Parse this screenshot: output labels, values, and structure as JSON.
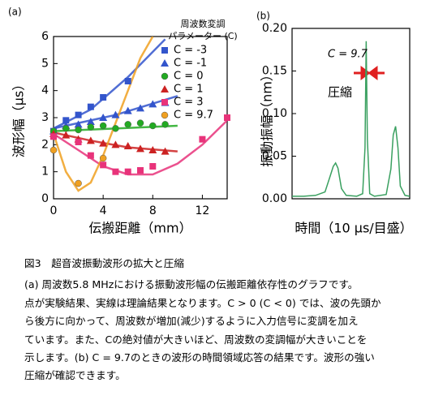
{
  "chart_data": [
    {
      "type": "scatter",
      "panel_label": "(a)",
      "xlabel": "伝搬距離（mm）",
      "ylabel": "波形幅（μs）",
      "xlim": [
        0,
        14
      ],
      "xticks": [
        0,
        4,
        8,
        12
      ],
      "ylim": [
        0,
        6
      ],
      "yticks": [
        0,
        1,
        2,
        3,
        4,
        5,
        6
      ],
      "legend_title": [
        "周波数変調",
        "パラメーター (C)"
      ],
      "series": [
        {
          "name": "C = -3",
          "color": "#3355cc",
          "marker": "square",
          "x": [
            0,
            1,
            2,
            3,
            4,
            6
          ],
          "values": [
            2.5,
            2.9,
            3.1,
            3.4,
            3.75,
            4.35
          ],
          "fit": {
            "x": [
              0,
              3,
              6,
              9
            ],
            "values": [
              2.6,
              3.3,
              4.5,
              5.9
            ]
          }
        },
        {
          "name": "C = -1",
          "color": "#3355cc",
          "marker": "triangle",
          "x": [
            0,
            1,
            2,
            3,
            4,
            5,
            6,
            7,
            8,
            9
          ],
          "values": [
            2.5,
            2.7,
            2.75,
            2.85,
            3.0,
            3.1,
            3.25,
            3.35,
            3.5,
            3.55
          ],
          "fit": {
            "x": [
              0,
              5,
              10
            ],
            "values": [
              2.6,
              3.1,
              3.8
            ]
          }
        },
        {
          "name": "C = 0",
          "color": "#22aa22",
          "marker": "circle",
          "x": [
            0,
            1,
            2,
            3,
            4,
            5,
            6,
            7,
            8,
            9
          ],
          "values": [
            2.5,
            2.6,
            2.55,
            2.65,
            2.7,
            2.6,
            2.75,
            2.8,
            2.7,
            2.75
          ],
          "fit": {
            "x": [
              0,
              5,
              10
            ],
            "values": [
              2.5,
              2.6,
              2.7
            ]
          }
        },
        {
          "name": "C = 1",
          "color": "#cc2222",
          "marker": "triangle",
          "x": [
            0,
            1,
            2,
            3,
            4,
            5,
            6,
            7,
            8,
            9
          ],
          "values": [
            2.4,
            2.35,
            2.2,
            2.15,
            2.05,
            2.0,
            1.95,
            1.85,
            1.8,
            1.75
          ],
          "fit": {
            "x": [
              0,
              3,
              6,
              10
            ],
            "values": [
              2.45,
              2.15,
              1.9,
              1.75
            ]
          }
        },
        {
          "name": "C = 3",
          "color": "#e8337a",
          "marker": "square",
          "x": [
            0,
            2,
            3,
            4,
            5,
            6,
            7,
            8,
            12,
            14
          ],
          "values": [
            2.3,
            2.1,
            1.6,
            1.25,
            1.0,
            1.0,
            1.05,
            1.2,
            2.2,
            3.0
          ],
          "fit": {
            "x": [
              0,
              2,
              4,
              6,
              8,
              10,
              12,
              14
            ],
            "values": [
              2.4,
              1.8,
              1.2,
              0.9,
              0.9,
              1.3,
              2.0,
              2.9
            ]
          }
        },
        {
          "name": "C = 9.7",
          "color": "#f0a020",
          "marker": "circle",
          "x": [
            0,
            2,
            4
          ],
          "values": [
            1.8,
            0.57,
            1.5
          ],
          "fit": {
            "x": [
              0,
              1,
              2,
              3,
              4,
              5,
              6,
              7,
              8
            ],
            "values": [
              2.4,
              1.0,
              0.3,
              0.6,
              1.6,
              2.8,
              4.0,
              5.2,
              6.0
            ]
          }
        }
      ]
    },
    {
      "type": "line",
      "panel_label": "(b)",
      "xlabel": "時間（10 μs/目盛）",
      "ylabel": "振動振幅（nm）",
      "xlim": [
        0,
        100
      ],
      "ylim": [
        0,
        0.2
      ],
      "yticks": [
        {
          "value": 0,
          "label": "0.00"
        },
        {
          "value": 0.05,
          "label": "0.05"
        },
        {
          "value": 0.1,
          "label": "0.10"
        },
        {
          "value": 0.15,
          "label": "0.15"
        },
        {
          "value": 0.2,
          "label": "0.20"
        }
      ],
      "annotations": [
        {
          "text": "C = 9.7"
        },
        {
          "text": "圧縮",
          "color": "#e02020"
        }
      ],
      "series": [
        {
          "color": "#3aa060",
          "x": [
            0,
            10,
            20,
            28,
            32,
            35,
            37,
            39,
            42,
            46,
            55,
            60,
            62,
            63,
            64,
            66,
            70,
            80,
            84,
            86,
            88,
            90,
            92,
            96,
            100
          ],
          "values": [
            0.003,
            0.003,
            0.004,
            0.008,
            0.025,
            0.038,
            0.042,
            0.036,
            0.012,
            0.004,
            0.003,
            0.006,
            0.06,
            0.185,
            0.07,
            0.006,
            0.003,
            0.005,
            0.035,
            0.075,
            0.085,
            0.06,
            0.015,
            0.004,
            0.003
          ]
        }
      ]
    }
  ],
  "caption": {
    "title": "図3　超音波振動波形の拡大と圧縮",
    "lines": [
      "(a) 周波数5.8 MHzにおける振動波形幅の伝搬距離依存性のグラフです。",
      "点が実験結果、実線は理論結果となります。C > 0 (C < 0) では、波の先頭か",
      "ら後方に向かって、周波数が増加(減少)するように入力信号に変調を加え",
      "ています。また、Cの絶対値が大きいほど、周波数の変調幅が大きいことを",
      "示します。(b) C = 9.7のときの波形の時間領域応答の結果です。波形の強い",
      "圧縮が確認できます。"
    ]
  }
}
